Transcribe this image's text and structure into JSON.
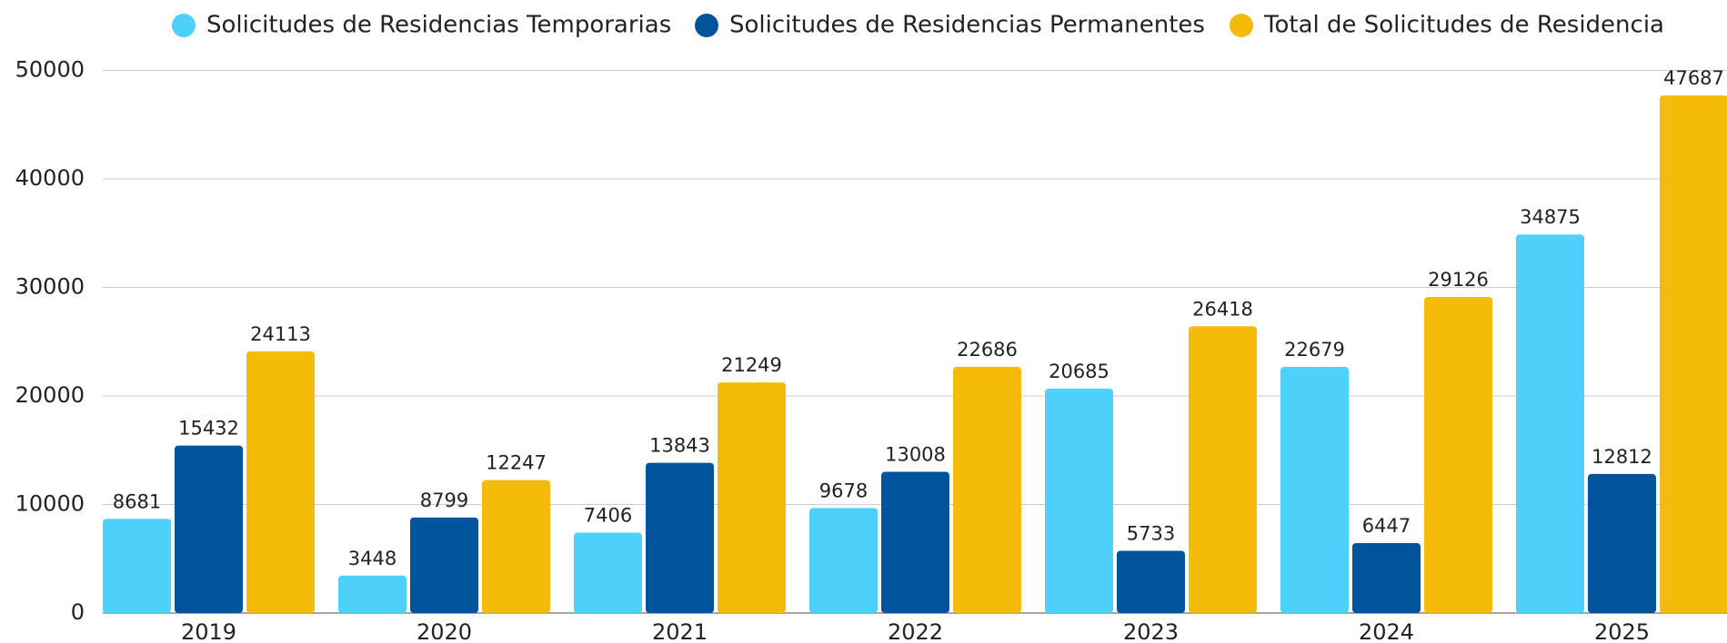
{
  "chart_data": {
    "type": "bar",
    "categories": [
      "2019",
      "2020",
      "2021",
      "2022",
      "2023",
      "2024",
      "2025"
    ],
    "series": [
      {
        "name": "Solicitudes de Residencias Temporarias",
        "color": "#4dd0fa",
        "values": [
          8681,
          3448,
          7406,
          9678,
          20685,
          22679,
          34875
        ]
      },
      {
        "name": "Solicitudes de Residencias Permanentes",
        "color": "#00549c",
        "values": [
          15432,
          8799,
          13843,
          13008,
          5733,
          6447,
          12812
        ]
      },
      {
        "name": "Total de Solicitudes de Residencia",
        "color": "#f4bc08",
        "values": [
          24113,
          12247,
          21249,
          22686,
          26418,
          29126,
          47687
        ]
      }
    ],
    "ylim": [
      0,
      50000
    ],
    "yticks": [
      0,
      10000,
      20000,
      30000,
      40000,
      50000
    ],
    "grid": true,
    "legend": "top"
  }
}
